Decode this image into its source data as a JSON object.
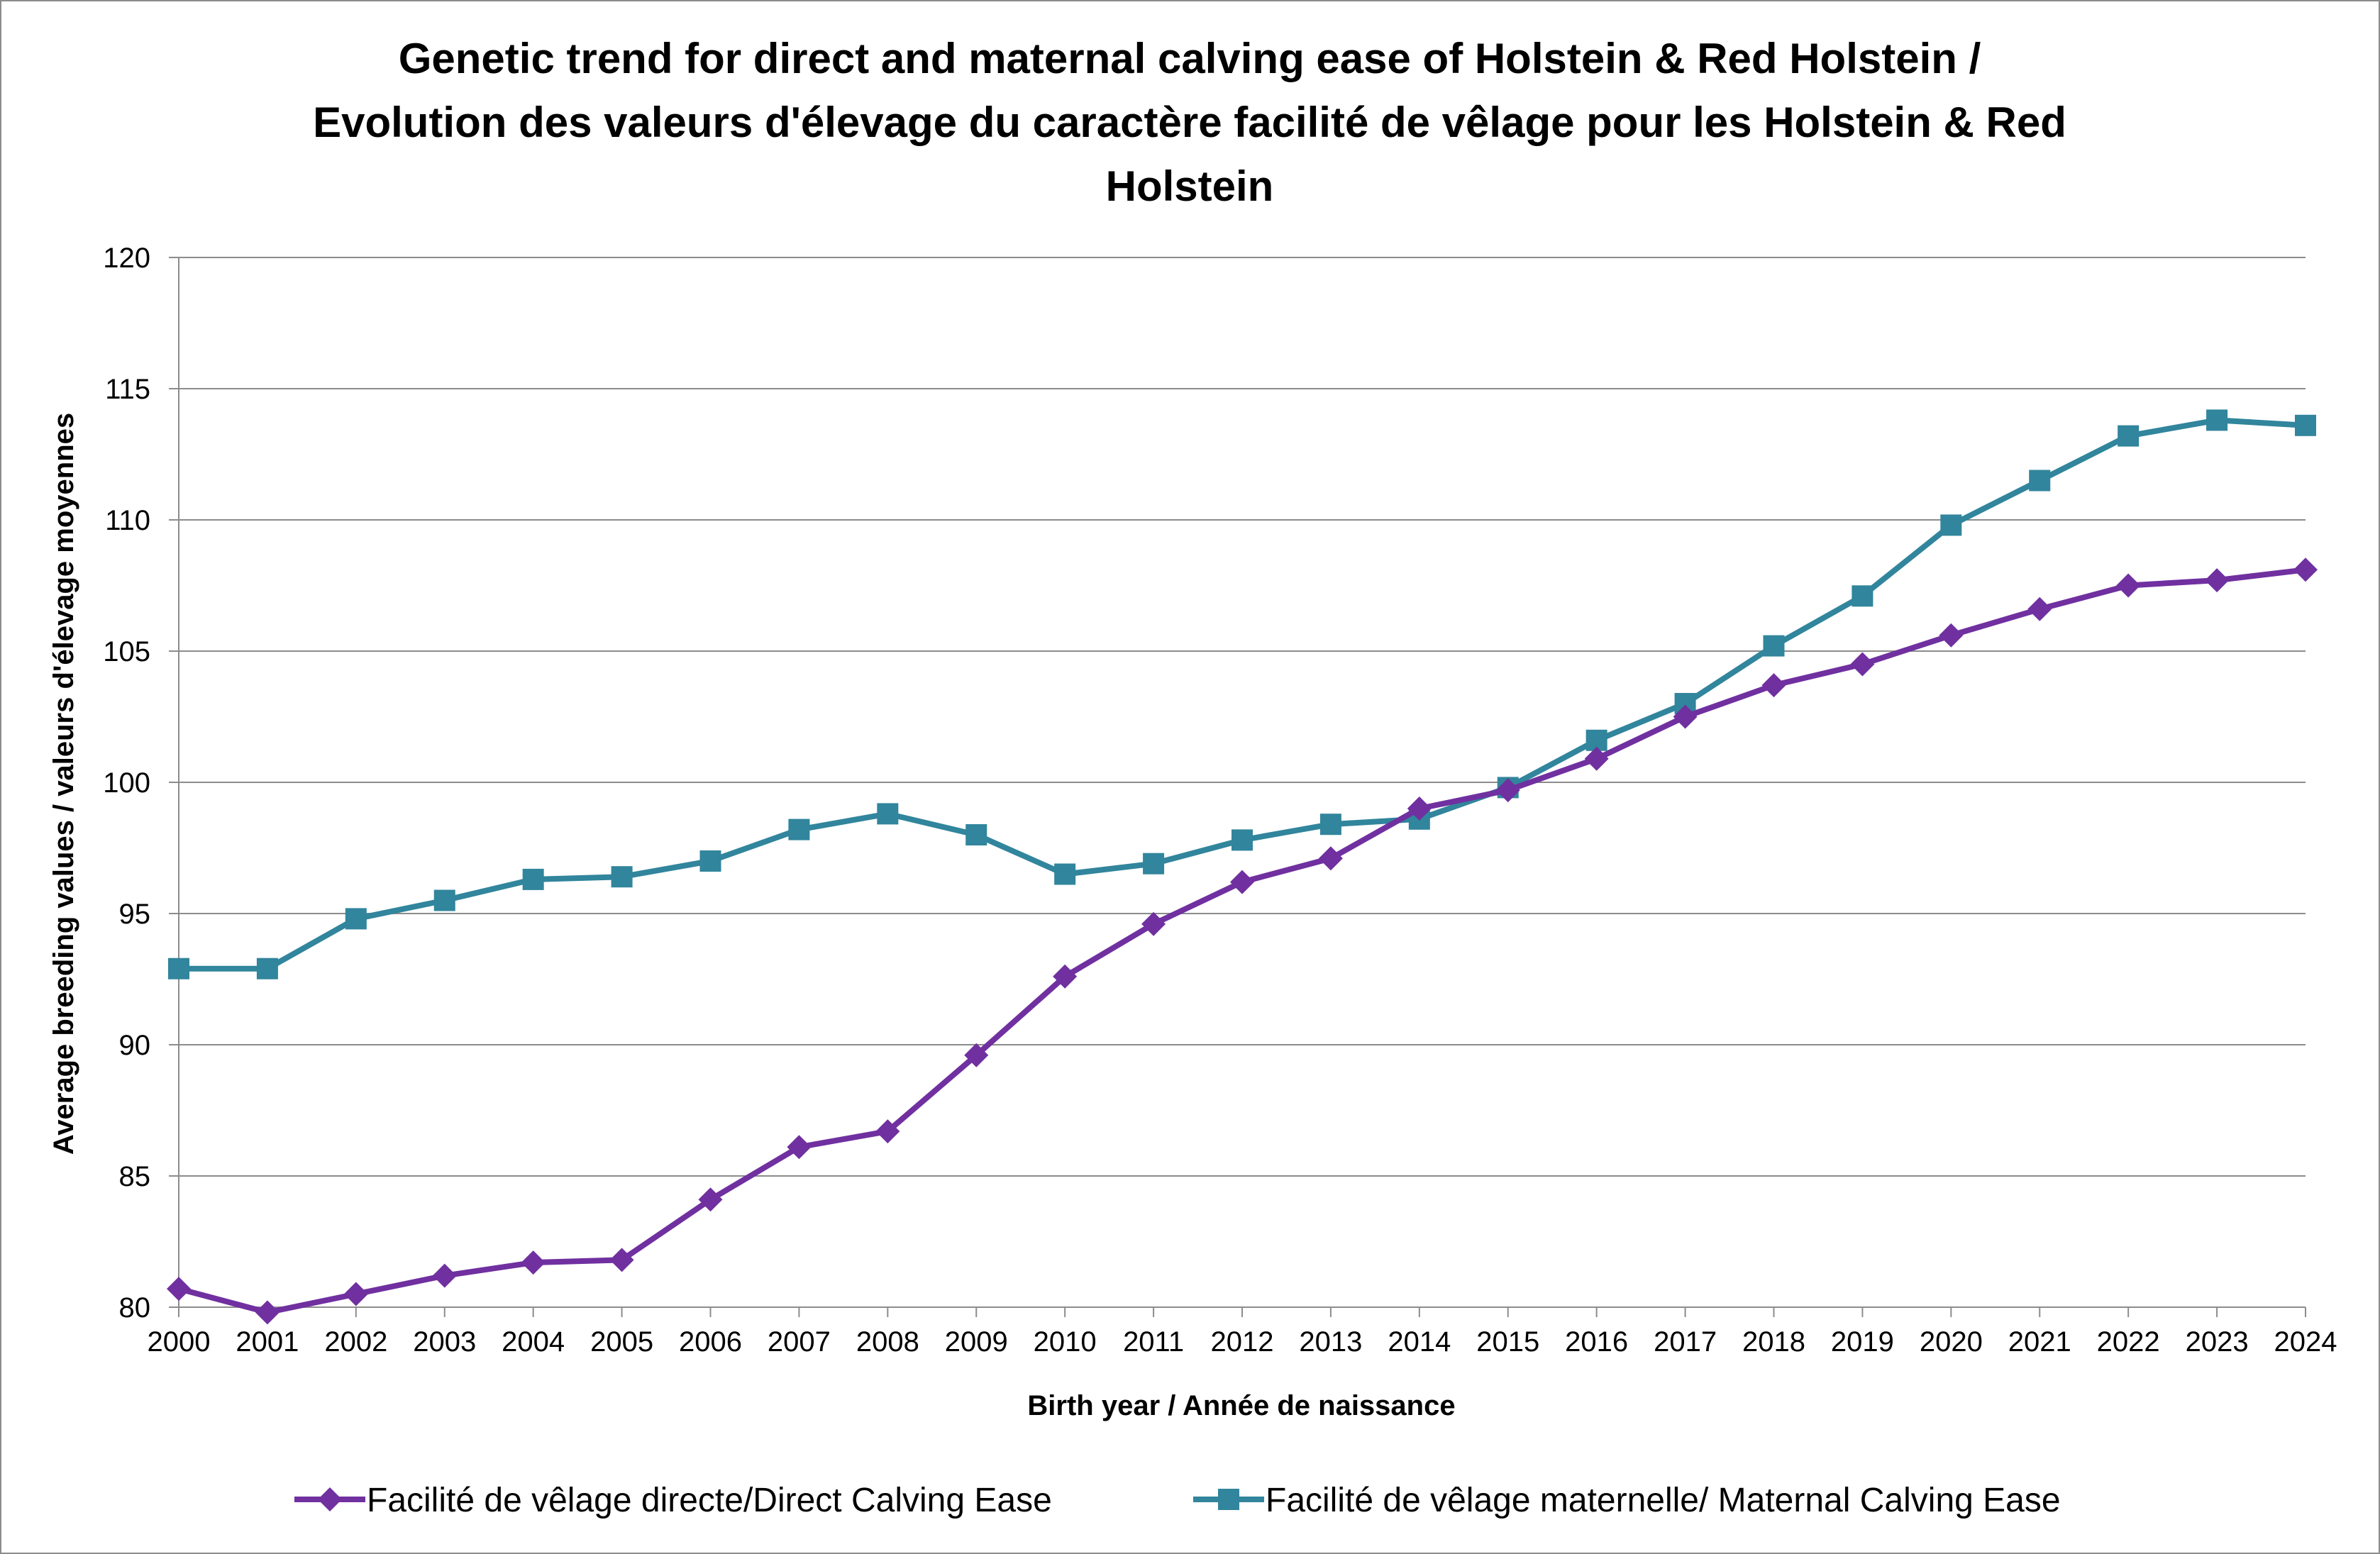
{
  "chart_data": {
    "type": "line",
    "title_lines": [
      "Genetic trend for direct and maternal calving ease of Holstein & Red Holstein  /",
      "Evolution des valeurs d'élevage du caractère facilité de vêlage pour les Holstein & Red",
      "Holstein"
    ],
    "xlabel": "Birth year / Année de naissance",
    "ylabel": "Average breeding values / valeurs d'élevage moyennes",
    "x": [
      "2000",
      "2001",
      "2002",
      "2003",
      "2004",
      "2005",
      "2006",
      "2007",
      "2008",
      "2009",
      "2010",
      "2011",
      "2012",
      "2013",
      "2014",
      "2015",
      "2016",
      "2017",
      "2018",
      "2019",
      "2020",
      "2021",
      "2022",
      "2023",
      "2024"
    ],
    "ylim": [
      80,
      120
    ],
    "yticks": [
      80,
      85,
      90,
      95,
      100,
      105,
      110,
      115,
      120
    ],
    "grid": true,
    "legend_position": "bottom",
    "series": [
      {
        "name": "Facilité de vêlage directe/Direct Calving Ease",
        "color": "#7030a0",
        "marker": "diamond",
        "values": [
          80.7,
          79.8,
          80.5,
          81.2,
          81.7,
          81.8,
          84.1,
          86.1,
          86.7,
          89.6,
          92.6,
          94.6,
          96.2,
          97.1,
          99.0,
          99.7,
          100.9,
          102.5,
          103.7,
          104.5,
          105.6,
          106.6,
          107.5,
          107.7,
          108.1
        ]
      },
      {
        "name": "Facilité de vêlage maternelle/ Maternal Calving Ease",
        "color": "#31859c",
        "marker": "square",
        "values": [
          92.9,
          92.9,
          94.8,
          95.5,
          96.3,
          96.4,
          97.0,
          98.2,
          98.8,
          98.0,
          96.5,
          96.9,
          97.8,
          98.4,
          98.6,
          99.8,
          101.6,
          103.0,
          105.2,
          107.1,
          109.8,
          111.5,
          113.2,
          113.8,
          113.6
        ]
      }
    ]
  }
}
